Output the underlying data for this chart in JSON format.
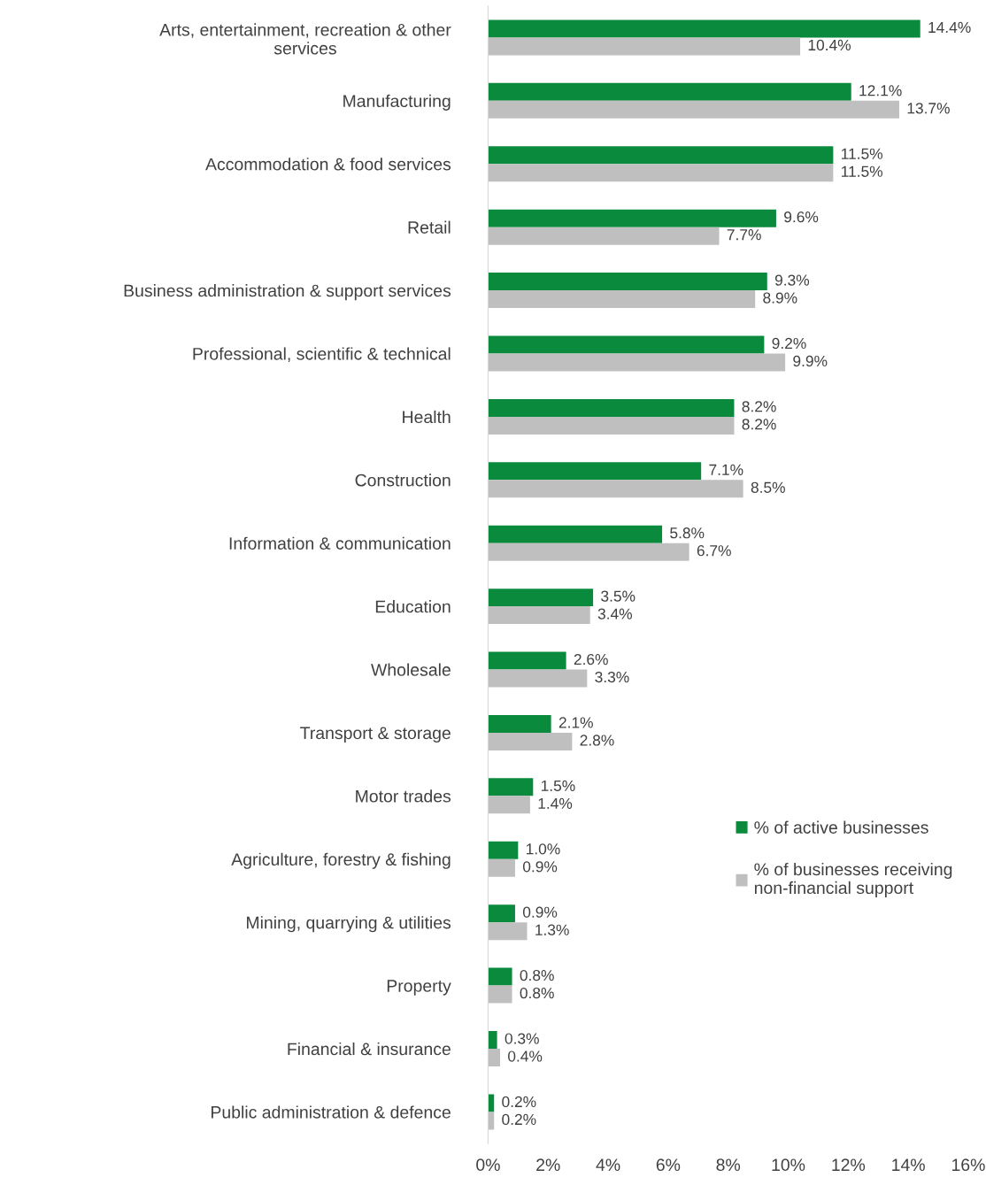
{
  "chart_data": {
    "type": "bar",
    "orientation": "horizontal",
    "categories": [
      "Arts, entertainment, recreation & other\nservices",
      "Manufacturing",
      "Accommodation & food services",
      "Retail",
      "Business administration & support services",
      "Professional, scientific & technical",
      "Health",
      "Construction",
      "Information & communication",
      "Education",
      "Wholesale",
      "Transport & storage",
      "Motor trades",
      "Agriculture, forestry & fishing",
      "Mining, quarrying & utilities",
      "Property",
      "Financial & insurance",
      "Public administration & defence"
    ],
    "series": [
      {
        "name": "% of active businesses",
        "color": "#0a8a3c",
        "values": [
          14.4,
          12.1,
          11.5,
          9.6,
          9.3,
          9.2,
          8.2,
          7.1,
          5.8,
          3.5,
          2.6,
          2.1,
          1.5,
          1.0,
          0.9,
          0.8,
          0.3,
          0.2
        ],
        "value_labels": [
          "14.4%",
          "12.1%",
          "11.5%",
          "9.6%",
          "9.3%",
          "9.2%",
          "8.2%",
          "7.1%",
          "5.8%",
          "3.5%",
          "2.6%",
          "2.1%",
          "1.5%",
          "1.0%",
          "0.9%",
          "0.8%",
          "0.3%",
          "0.2%"
        ]
      },
      {
        "name": "% of businesses receiving\nnon-financial support",
        "color": "#bfbfbf",
        "values": [
          10.4,
          13.7,
          11.5,
          7.7,
          8.9,
          9.9,
          8.2,
          8.5,
          6.7,
          3.4,
          3.3,
          2.8,
          1.4,
          0.9,
          1.3,
          0.8,
          0.4,
          0.2
        ],
        "value_labels": [
          "10.4%",
          "13.7%",
          "11.5%",
          "7.7%",
          "8.9%",
          "9.9%",
          "8.2%",
          "8.5%",
          "6.7%",
          "3.4%",
          "3.3%",
          "2.8%",
          "1.4%",
          "0.9%",
          "1.3%",
          "0.8%",
          "0.4%",
          "0.2%"
        ]
      }
    ],
    "xlim": [
      0,
      16
    ],
    "xticks": [
      {
        "value": 0,
        "label": "0%"
      },
      {
        "value": 2,
        "label": "2%"
      },
      {
        "value": 4,
        "label": "4%"
      },
      {
        "value": 6,
        "label": "6%"
      },
      {
        "value": 8,
        "label": "8%"
      },
      {
        "value": 10,
        "label": "10%"
      },
      {
        "value": 12,
        "label": "12%"
      },
      {
        "value": 14,
        "label": "14%"
      },
      {
        "value": 16,
        "label": "16%"
      }
    ],
    "grid": false,
    "legend": "right"
  }
}
